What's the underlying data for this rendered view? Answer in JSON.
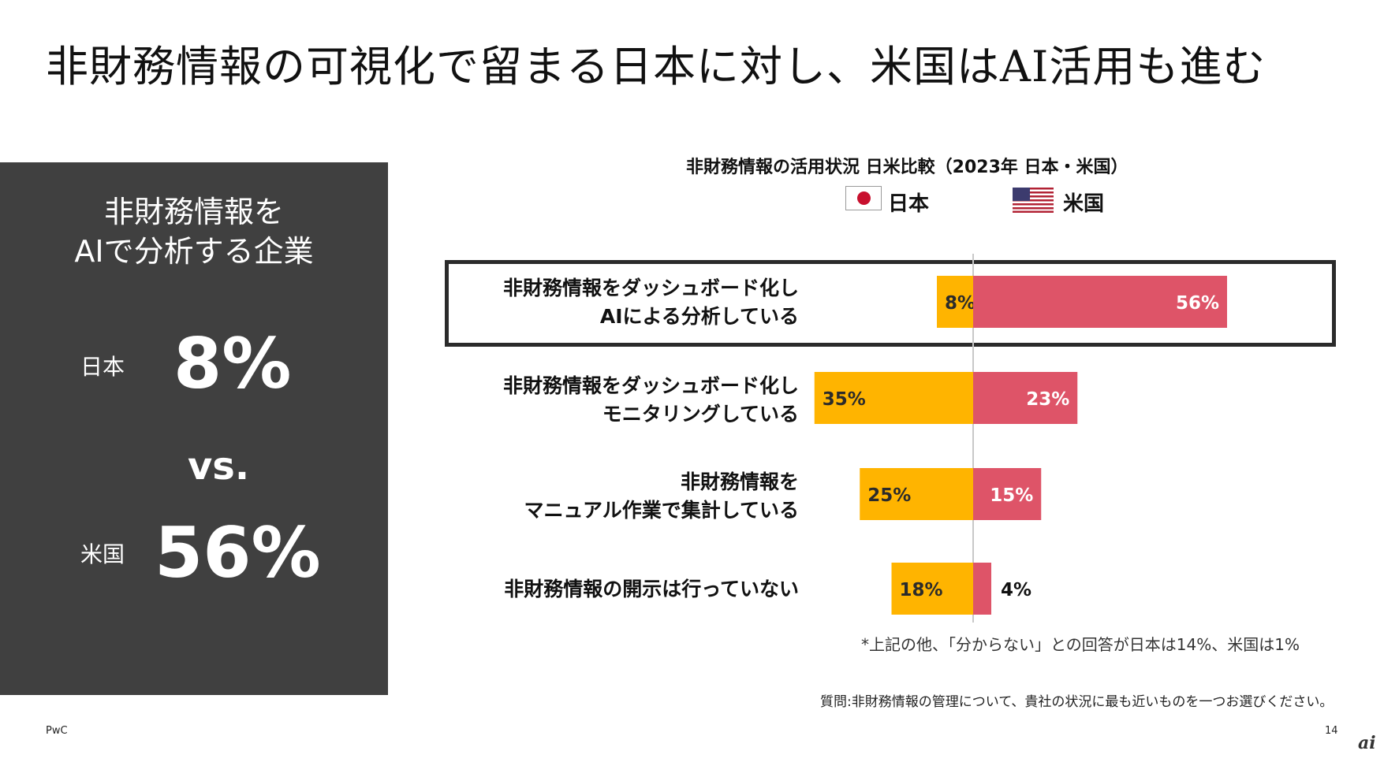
{
  "slide": {
    "title": "非財務情報の可視化で留まる日本に対し、米国はAI活用も進む",
    "page_number": "14",
    "brand": "PwC",
    "watermark": "ai"
  },
  "panel": {
    "heading_line1": "非財務情報を",
    "heading_line2": "AIで分析する企業",
    "japan_label": "日本",
    "japan_value": "8%",
    "vs": "vs.",
    "us_label": "米国",
    "us_value": "56%"
  },
  "colors": {
    "japan": "#FFB400",
    "us": "#DE5468",
    "panel_bg": "#404040",
    "axis": "#c8c8c8"
  },
  "chart_data": {
    "type": "bar",
    "title": "非財務情報の活用状況 日米比較（2023年 日本・米国）",
    "legend": [
      "日本",
      "米国"
    ],
    "legend_icons": [
      "japan-flag-icon",
      "us-flag-icon"
    ],
    "categories": [
      [
        "非財務情報をダッシュボード化し",
        "AIによる分析している"
      ],
      [
        "非財務情報をダッシュボード化し",
        "モニタリングしている"
      ],
      [
        "非財務情報を",
        "マニュアル作業で集計している"
      ],
      [
        "非財務情報の開示は行っていない"
      ]
    ],
    "series": [
      {
        "name": "日本",
        "values": [
          8,
          35,
          25,
          18
        ]
      },
      {
        "name": "米国",
        "values": [
          56,
          23,
          15,
          4
        ]
      }
    ],
    "labels": {
      "japan": [
        "8%",
        "35%",
        "25%",
        "18%"
      ],
      "us": [
        "56%",
        "23%",
        "15%",
        "4%"
      ]
    },
    "highlighted_category": 0,
    "orientation": "horizontal-diverging"
  },
  "notes": {
    "footnote": "*上記の他、「分からない」との回答が日本は14%、米国は1%",
    "question": "質問:非財務情報の管理について、貴社の状況に最も近いものを一つお選びください。"
  }
}
